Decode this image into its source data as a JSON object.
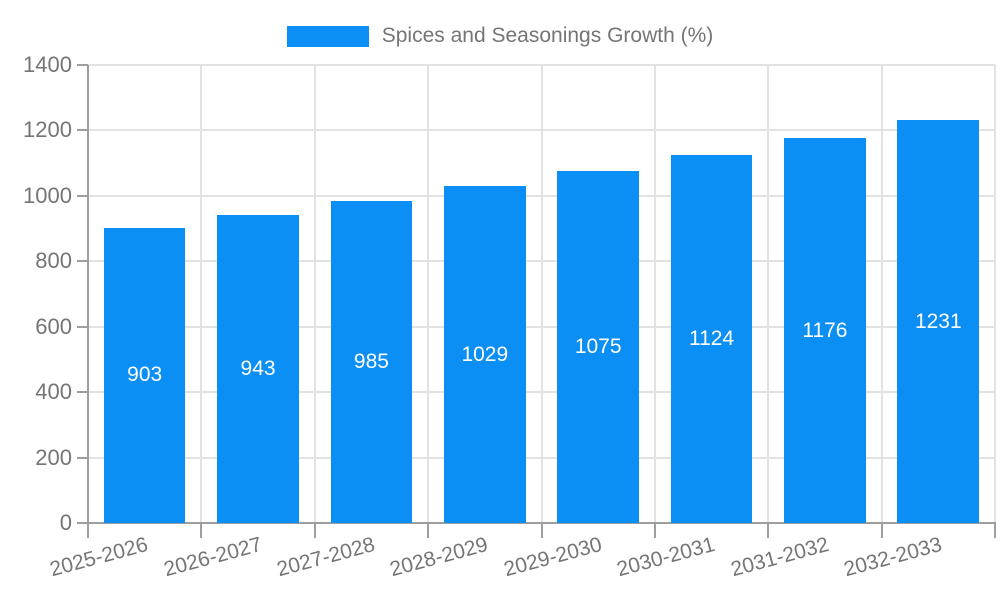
{
  "legend": {
    "label": "Spices and Seasonings Growth (%)"
  },
  "chart_data": {
    "type": "bar",
    "title": "Spices and Seasonings Growth (%)",
    "categories": [
      "2025-2026",
      "2026-2027",
      "2027-2028",
      "2028-2029",
      "2029-2030",
      "2030-2031",
      "2031-2032",
      "2032-2033"
    ],
    "values": [
      903,
      943,
      985,
      1029,
      1075,
      1124,
      1176,
      1231
    ],
    "xlabel": "",
    "ylabel": "",
    "ylim": [
      0,
      1400
    ],
    "yticks": [
      0,
      200,
      400,
      600,
      800,
      1000,
      1200,
      1400
    ],
    "grid": true,
    "legend_position": "top-center",
    "value_labels": "inside-center",
    "xtick_rotation_deg": -15,
    "colors": {
      "bar": "#0b8ff5",
      "value_label": "#ffffff",
      "axis_text": "#757575",
      "grid": "#e2e2e2",
      "axis_line": "#9e9e9e",
      "background": "#ffffff"
    }
  }
}
